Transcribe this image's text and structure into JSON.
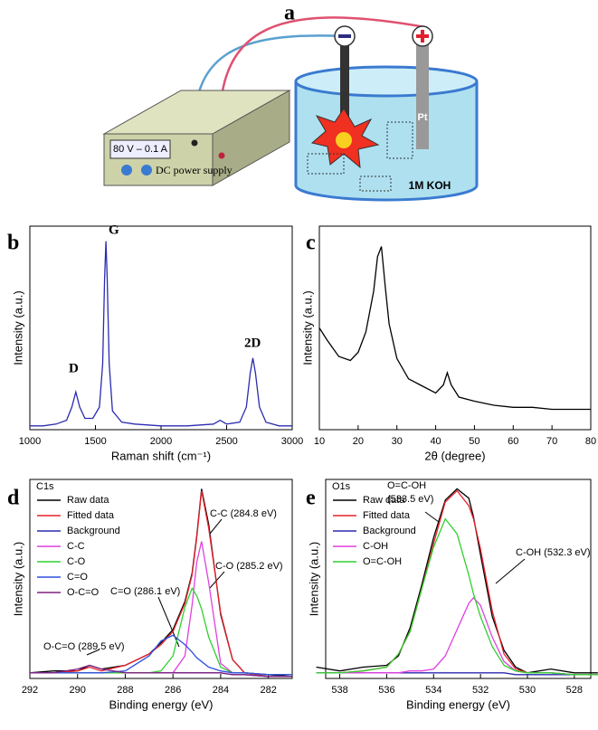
{
  "schematic": {
    "label": "a",
    "display": "80 V – 0.1 A",
    "supply": "DC power supply",
    "electrode": "Pt",
    "solution": "1M KOH"
  },
  "chart_data": [
    {
      "type": "line",
      "panel_label": "b",
      "xlabel": "Raman shift (cm⁻¹)",
      "ylabel": "Intensity (a.u.)",
      "x": [
        1000,
        1100,
        1200,
        1280,
        1320,
        1350,
        1380,
        1420,
        1480,
        1530,
        1555,
        1570,
        1580,
        1590,
        1605,
        1630,
        1700,
        1800,
        2000,
        2200,
        2400,
        2450,
        2500,
        2600,
        2650,
        2680,
        2700,
        2720,
        2750,
        2800,
        2900,
        3000
      ],
      "values": [
        2,
        2,
        3,
        5,
        12,
        20,
        12,
        6,
        6,
        12,
        35,
        80,
        100,
        80,
        35,
        10,
        4,
        3,
        2,
        2,
        3,
        5,
        3,
        4,
        12,
        30,
        38,
        30,
        12,
        4,
        2,
        2
      ],
      "color": "#2b2bb0",
      "xlim": [
        1000,
        3000
      ],
      "ylim": [
        0,
        108
      ],
      "xticks": [
        1000,
        1500,
        2000,
        2500,
        3000
      ],
      "annotations": [
        "D",
        "G",
        "2D"
      ]
    },
    {
      "type": "line",
      "panel_label": "c",
      "xlabel": "2θ (degree)",
      "ylabel": "Intensity (a.u.)",
      "x": [
        10,
        12,
        15,
        18,
        20,
        22,
        24,
        25,
        26,
        27,
        28,
        30,
        33,
        36,
        40,
        42,
        43,
        44,
        46,
        50,
        55,
        60,
        65,
        70,
        75,
        80
      ],
      "values": [
        50,
        44,
        36,
        34,
        38,
        48,
        68,
        85,
        90,
        70,
        52,
        35,
        25,
        22,
        18,
        22,
        28,
        22,
        16,
        14,
        12,
        11,
        11,
        10,
        10,
        10
      ],
      "color": "#000000",
      "xlim": [
        10,
        80
      ],
      "ylim": [
        0,
        100
      ],
      "xticks": [
        10,
        20,
        30,
        40,
        50,
        60,
        70,
        80
      ],
      "annotations": []
    },
    {
      "type": "line",
      "panel_label": "d",
      "xlabel": "Binding energy (eV)",
      "ylabel": "Intensity (a.u.)",
      "x": [
        292,
        291,
        290,
        289.5,
        289,
        288,
        287,
        286.5,
        286,
        285.5,
        285.2,
        285,
        284.8,
        284.5,
        284,
        283.5,
        283,
        282,
        281
      ],
      "series": [
        {
          "name": "Raw data",
          "color": "#000000",
          "values": [
            3,
            4,
            4,
            7,
            5,
            7,
            13,
            19,
            26,
            41,
            56,
            76,
            101,
            82,
            34,
            10,
            3,
            2,
            1
          ]
        },
        {
          "name": "Fitted data",
          "color": "#e8202a",
          "values": [
            3,
            3,
            4,
            6,
            4,
            7,
            13,
            18,
            25,
            40,
            55,
            75,
            100,
            80,
            35,
            10,
            3,
            1,
            1
          ]
        },
        {
          "name": "Background",
          "color": "#2b2bb0",
          "values": [
            3,
            3,
            3,
            3,
            3,
            3,
            3,
            3,
            3,
            3,
            3,
            3,
            3,
            3,
            3,
            2,
            2,
            1,
            1
          ]
        },
        {
          "name": "C-C",
          "color": "#e040e0",
          "values": [
            3,
            3,
            3,
            3,
            3,
            3,
            3,
            3,
            3,
            12,
            39,
            62,
            73,
            51,
            8,
            3,
            3,
            2,
            2
          ]
        },
        {
          "name": "C-O",
          "color": "#30d030",
          "values": [
            3,
            3,
            3,
            3,
            3,
            3,
            3,
            4,
            12,
            38,
            48,
            44,
            37,
            22,
            6,
            3,
            3,
            2,
            2
          ]
        },
        {
          "name": "C=O",
          "color": "#3050e0",
          "values": [
            3,
            3,
            3,
            3,
            3,
            4,
            12,
            20,
            23,
            18,
            14,
            11,
            9,
            6,
            4,
            3,
            3,
            2,
            2
          ]
        },
        {
          "name": "O-C=O",
          "color": "#802080",
          "values": [
            3,
            3,
            5,
            7,
            5,
            3,
            3,
            3,
            3,
            3,
            3,
            3,
            3,
            3,
            3,
            2,
            2,
            1,
            1
          ]
        }
      ],
      "xlim": [
        292,
        281
      ],
      "ylim": [
        0,
        106
      ],
      "xticks": [
        292,
        290,
        288,
        286,
        284,
        282
      ],
      "legend": "upper left",
      "annotations": [
        "C1s",
        "C-C (284.8 eV)",
        "C-O (285.2 eV)",
        "C=O (286.1 eV)",
        "O-C=O (289.5 eV)"
      ]
    },
    {
      "type": "line",
      "panel_label": "e",
      "xlabel": "Binding energy (eV)",
      "ylabel": "Intensity (a.u.)",
      "x": [
        539,
        538,
        537,
        536,
        535.5,
        535,
        534.5,
        534,
        533.5,
        533,
        532.5,
        532.3,
        532,
        531.5,
        531,
        530.5,
        530,
        529,
        528,
        527
      ],
      "series": [
        {
          "name": "Raw data",
          "color": "#000000",
          "values": [
            6,
            4,
            6,
            7,
            12,
            27,
            50,
            75,
            95,
            101,
            96,
            86,
            66,
            33,
            15,
            6,
            3,
            5,
            3,
            3
          ]
        },
        {
          "name": "Fitted data",
          "color": "#e8202a",
          "values": [
            3,
            3,
            4,
            6,
            13,
            25,
            48,
            72,
            94,
            100,
            92,
            85,
            69,
            36,
            13,
            5,
            3,
            3,
            2,
            2
          ]
        },
        {
          "name": "Background",
          "color": "#2b2bb0",
          "values": [
            3,
            3,
            3,
            3,
            3,
            3,
            3,
            3,
            3,
            3,
            3,
            3,
            3,
            3,
            3,
            2,
            2,
            2,
            2,
            2
          ]
        },
        {
          "name": "C-OH",
          "color": "#e040e0",
          "values": [
            3,
            3,
            3,
            3,
            3,
            4,
            4,
            5,
            12,
            26,
            40,
            43,
            39,
            22,
            9,
            4,
            3,
            3,
            2,
            2
          ]
        },
        {
          "name": "O=C-OH",
          "color": "#30d030",
          "values": [
            3,
            3,
            4,
            6,
            13,
            25,
            48,
            70,
            85,
            77,
            55,
            45,
            33,
            17,
            7,
            4,
            3,
            3,
            2,
            2
          ]
        }
      ],
      "xlim": [
        538.6,
        527.3
      ],
      "ylim": [
        0,
        106
      ],
      "xticks": [
        538,
        536,
        534,
        532,
        530,
        528
      ],
      "legend": "upper left",
      "annotations": [
        "O1s",
        "O=C-OH",
        "(533.5 eV)",
        "C-OH (532.3 eV)"
      ]
    }
  ]
}
